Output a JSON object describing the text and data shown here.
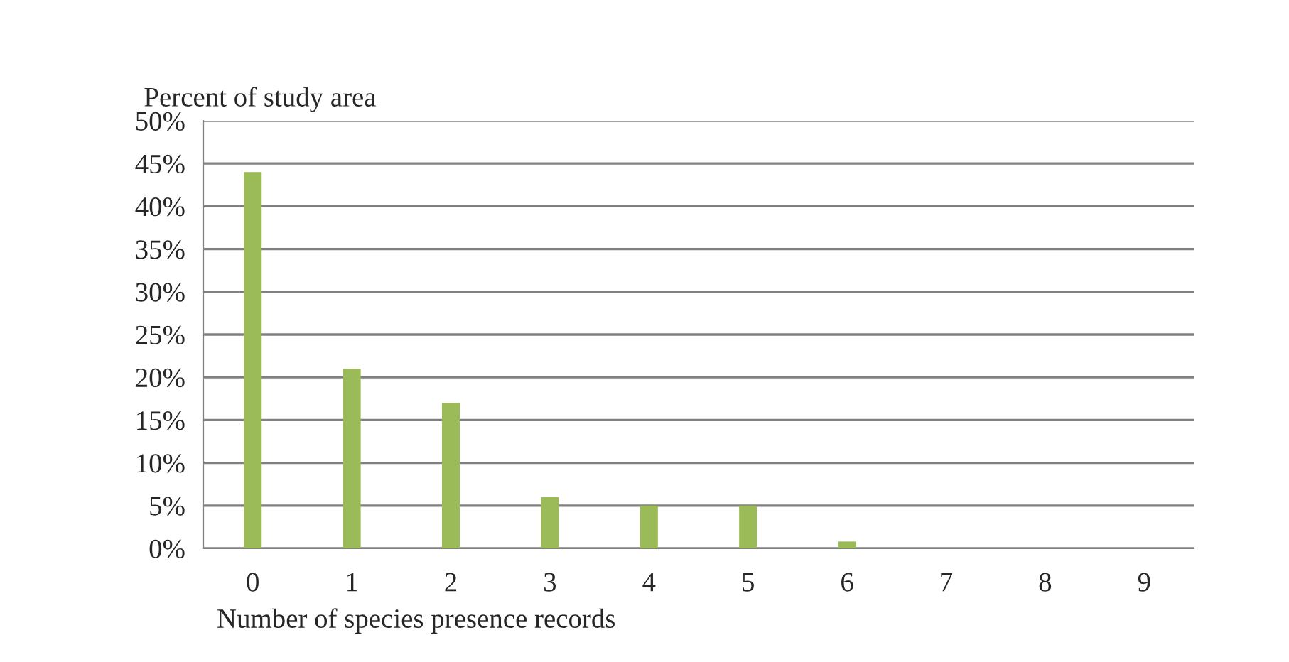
{
  "chart_data": {
    "type": "bar",
    "ylabel": "Percent of study area",
    "xlabel": "Number of species presence records",
    "categories": [
      "0",
      "1",
      "2",
      "3",
      "4",
      "5",
      "6",
      "7",
      "8",
      "9"
    ],
    "values": [
      44,
      21,
      17,
      6,
      5,
      5,
      0.8,
      0,
      0,
      0
    ],
    "color": "#9bbb59",
    "ylim": [
      0,
      50
    ],
    "yticks": [
      {
        "value": 0,
        "label": "0%"
      },
      {
        "value": 5,
        "label": "5%"
      },
      {
        "value": 10,
        "label": "10%"
      },
      {
        "value": 15,
        "label": "15%"
      },
      {
        "value": 20,
        "label": "20%"
      },
      {
        "value": 25,
        "label": "25%"
      },
      {
        "value": 30,
        "label": "30%"
      },
      {
        "value": 35,
        "label": "35%"
      },
      {
        "value": 40,
        "label": "40%"
      },
      {
        "value": 45,
        "label": "45%"
      },
      {
        "value": 50,
        "label": "50%"
      }
    ],
    "grid": "y"
  }
}
